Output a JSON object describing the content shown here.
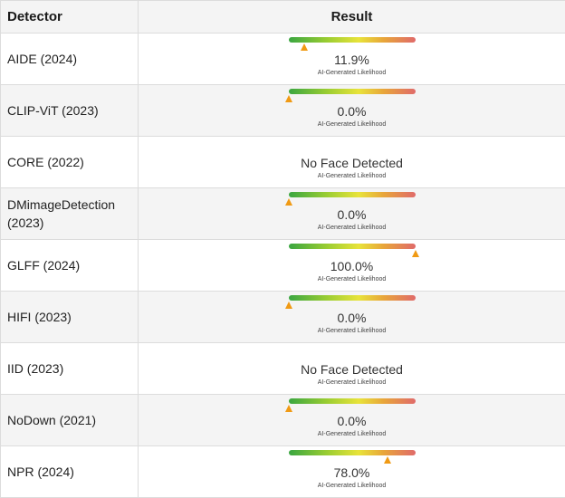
{
  "header": {
    "detector": "Detector",
    "result": "Result"
  },
  "caption": "AI-Generated Likelihood",
  "rows": [
    {
      "detector": "AIDE (2024)",
      "result": "11.9%",
      "likelihood": 0.119,
      "has_gauge": true
    },
    {
      "detector": "CLIP-ViT (2023)",
      "result": "0.0%",
      "likelihood": 0.0,
      "has_gauge": true
    },
    {
      "detector": "CORE (2022)",
      "result": "No Face Detected",
      "has_gauge": false
    },
    {
      "detector": "DMimageDetection (2023)",
      "result": "0.0%",
      "likelihood": 0.0,
      "has_gauge": true
    },
    {
      "detector": "GLFF (2024)",
      "result": "100.0%",
      "likelihood": 1.0,
      "has_gauge": true
    },
    {
      "detector": "HIFI (2023)",
      "result": "0.0%",
      "likelihood": 0.0,
      "has_gauge": true
    },
    {
      "detector": "IID (2023)",
      "result": "No Face Detected",
      "has_gauge": false
    },
    {
      "detector": "NoDown (2021)",
      "result": "0.0%",
      "likelihood": 0.0,
      "has_gauge": true
    },
    {
      "detector": "NPR (2024)",
      "result": "78.0%",
      "likelihood": 0.78,
      "has_gauge": true
    }
  ],
  "colors": {
    "marker": "#f09a14",
    "gauge_start": "#3aa641",
    "gauge_mid": "#e8e33a",
    "gauge_end": "#e06a6a"
  }
}
